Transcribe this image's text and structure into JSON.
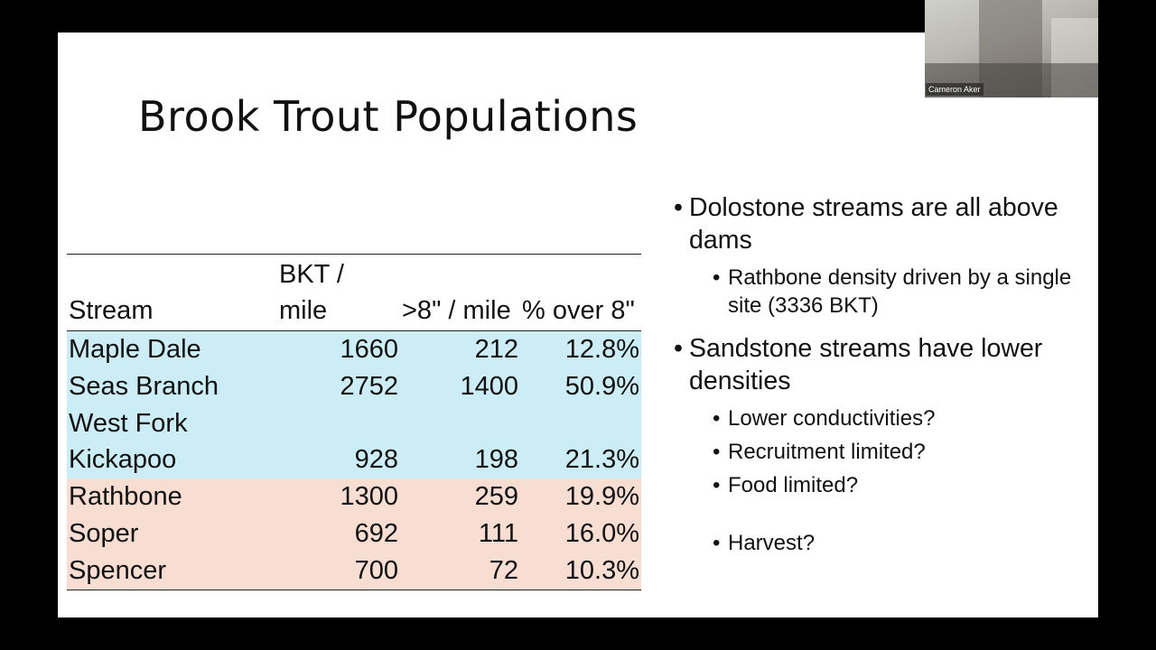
{
  "slide": {
    "title": "Brook Trout Populations"
  },
  "table": {
    "headers": [
      "Stream",
      "BKT / mile",
      ">8\" / mile",
      "% over 8\""
    ],
    "colors": {
      "dolostone": "#cdedf6",
      "sandstone": "#f8ddd2"
    },
    "rows": [
      {
        "stream": "Maple Dale",
        "bkt_per_mile": "1660",
        "over8_per_mile": "212",
        "pct_over8": "12.8%",
        "group": "dolostone"
      },
      {
        "stream": "Seas Branch",
        "bkt_per_mile": "2752",
        "over8_per_mile": "1400",
        "pct_over8": "50.9%",
        "group": "dolostone"
      },
      {
        "stream": "West Fork Kickapoo",
        "bkt_per_mile": "928",
        "over8_per_mile": "198",
        "pct_over8": "21.3%",
        "group": "dolostone"
      },
      {
        "stream": "Rathbone",
        "bkt_per_mile": "1300",
        "over8_per_mile": "259",
        "pct_over8": "19.9%",
        "group": "sandstone"
      },
      {
        "stream": "Soper",
        "bkt_per_mile": "692",
        "over8_per_mile": "111",
        "pct_over8": "16.0%",
        "group": "sandstone"
      },
      {
        "stream": "Spencer",
        "bkt_per_mile": "700",
        "over8_per_mile": "72",
        "pct_over8": "10.3%",
        "group": "sandstone"
      }
    ]
  },
  "bullets": [
    {
      "text": "Dolostone streams are all above dams",
      "sub": [
        "Rathbone density driven by a single site (3336 BKT)"
      ]
    },
    {
      "text": "Sandstone streams have lower densities",
      "sub": [
        "Lower conductivities?",
        "Recruitment limited?",
        "Food limited?",
        "Harvest?"
      ]
    }
  ],
  "bullet_glyph": "•",
  "video": {
    "participant_name": "Cameron Aker"
  }
}
